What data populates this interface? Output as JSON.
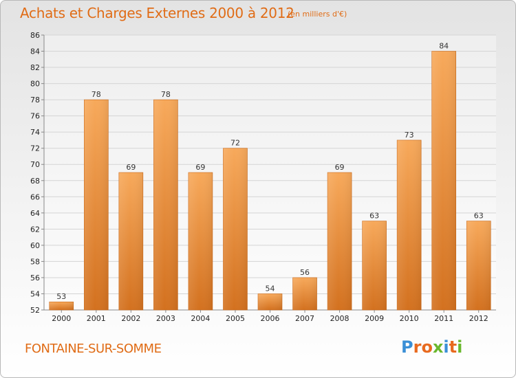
{
  "header": {
    "title": "Achats et Charges Externes 2000 à 2012",
    "unit": "(en milliers d'€)"
  },
  "footer": {
    "commune": "FONTAINE-SUR-SOMME",
    "brand": "Proxiti"
  },
  "colors": {
    "accent": "#e06c16",
    "bar_light": "#f6a657",
    "bar_dark": "#d06f1d"
  },
  "chart_data": {
    "type": "bar",
    "title": "Achats et Charges Externes 2000 à 2012",
    "subtitle": "(en milliers d'€)",
    "xlabel": "",
    "ylabel": "",
    "categories": [
      "2000",
      "2001",
      "2002",
      "2003",
      "2004",
      "2005",
      "2006",
      "2007",
      "2008",
      "2009",
      "2010",
      "2011",
      "2012"
    ],
    "values": [
      53,
      78,
      69,
      78,
      69,
      72,
      54,
      56,
      69,
      63,
      73,
      84,
      63
    ],
    "ylim": [
      52,
      86
    ],
    "yticks": [
      52,
      54,
      56,
      58,
      60,
      62,
      64,
      66,
      68,
      70,
      72,
      74,
      76,
      78,
      80,
      82,
      84,
      86
    ],
    "grid": true,
    "legend": "none"
  }
}
